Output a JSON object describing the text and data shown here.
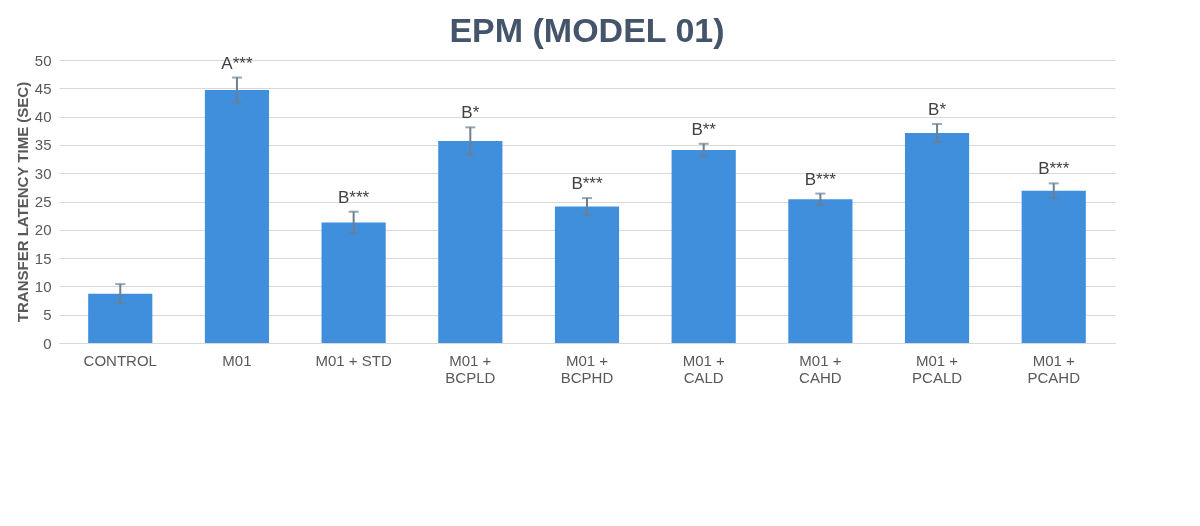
{
  "chart_data": {
    "type": "bar",
    "title": "EPM (MODEL 01)",
    "ylabel": "TRANSFER LATENCY TIME (SEC)",
    "categories": [
      "CONTROL",
      "M01",
      "M01 + STD",
      "M01 + BCPLD",
      "M01 + BCPHD",
      "M01 + CALD",
      "M01 + CAHD",
      "M01 + PCALD",
      "M01 + PCAHD"
    ],
    "values": [
      8.7,
      44.7,
      21.3,
      35.7,
      24.1,
      34.1,
      25.4,
      37.1,
      26.9
    ],
    "errors": [
      1.7,
      2.2,
      1.9,
      2.4,
      1.5,
      1.1,
      1.0,
      1.6,
      1.3
    ],
    "color": "#3f8fdd",
    "ylim": [
      0,
      50
    ],
    "yticks": [
      0,
      5,
      10,
      15,
      20,
      25,
      30,
      35,
      40,
      45,
      50
    ],
    "grid": "y",
    "annotations": [
      {
        "text": "A***",
        "x": "M01",
        "y": 46.9
      },
      {
        "text": "B***",
        "x": "M01 + STD",
        "y": 23.2
      },
      {
        "text": "B*",
        "x": "M01 + BCPLD",
        "y": 38.1
      },
      {
        "text": "B***",
        "x": "M01 + BCPHD",
        "y": 25.6
      },
      {
        "text": "B**",
        "x": "M01 + CALD",
        "y": 35.2
      },
      {
        "text": "B***",
        "x": "M01 + CAHD",
        "y": 26.4
      },
      {
        "text": "B*",
        "x": "M01 + PCALD",
        "y": 38.7
      },
      {
        "text": "B***",
        "x": "M01 + PCAHD",
        "y": 28.2
      }
    ]
  }
}
